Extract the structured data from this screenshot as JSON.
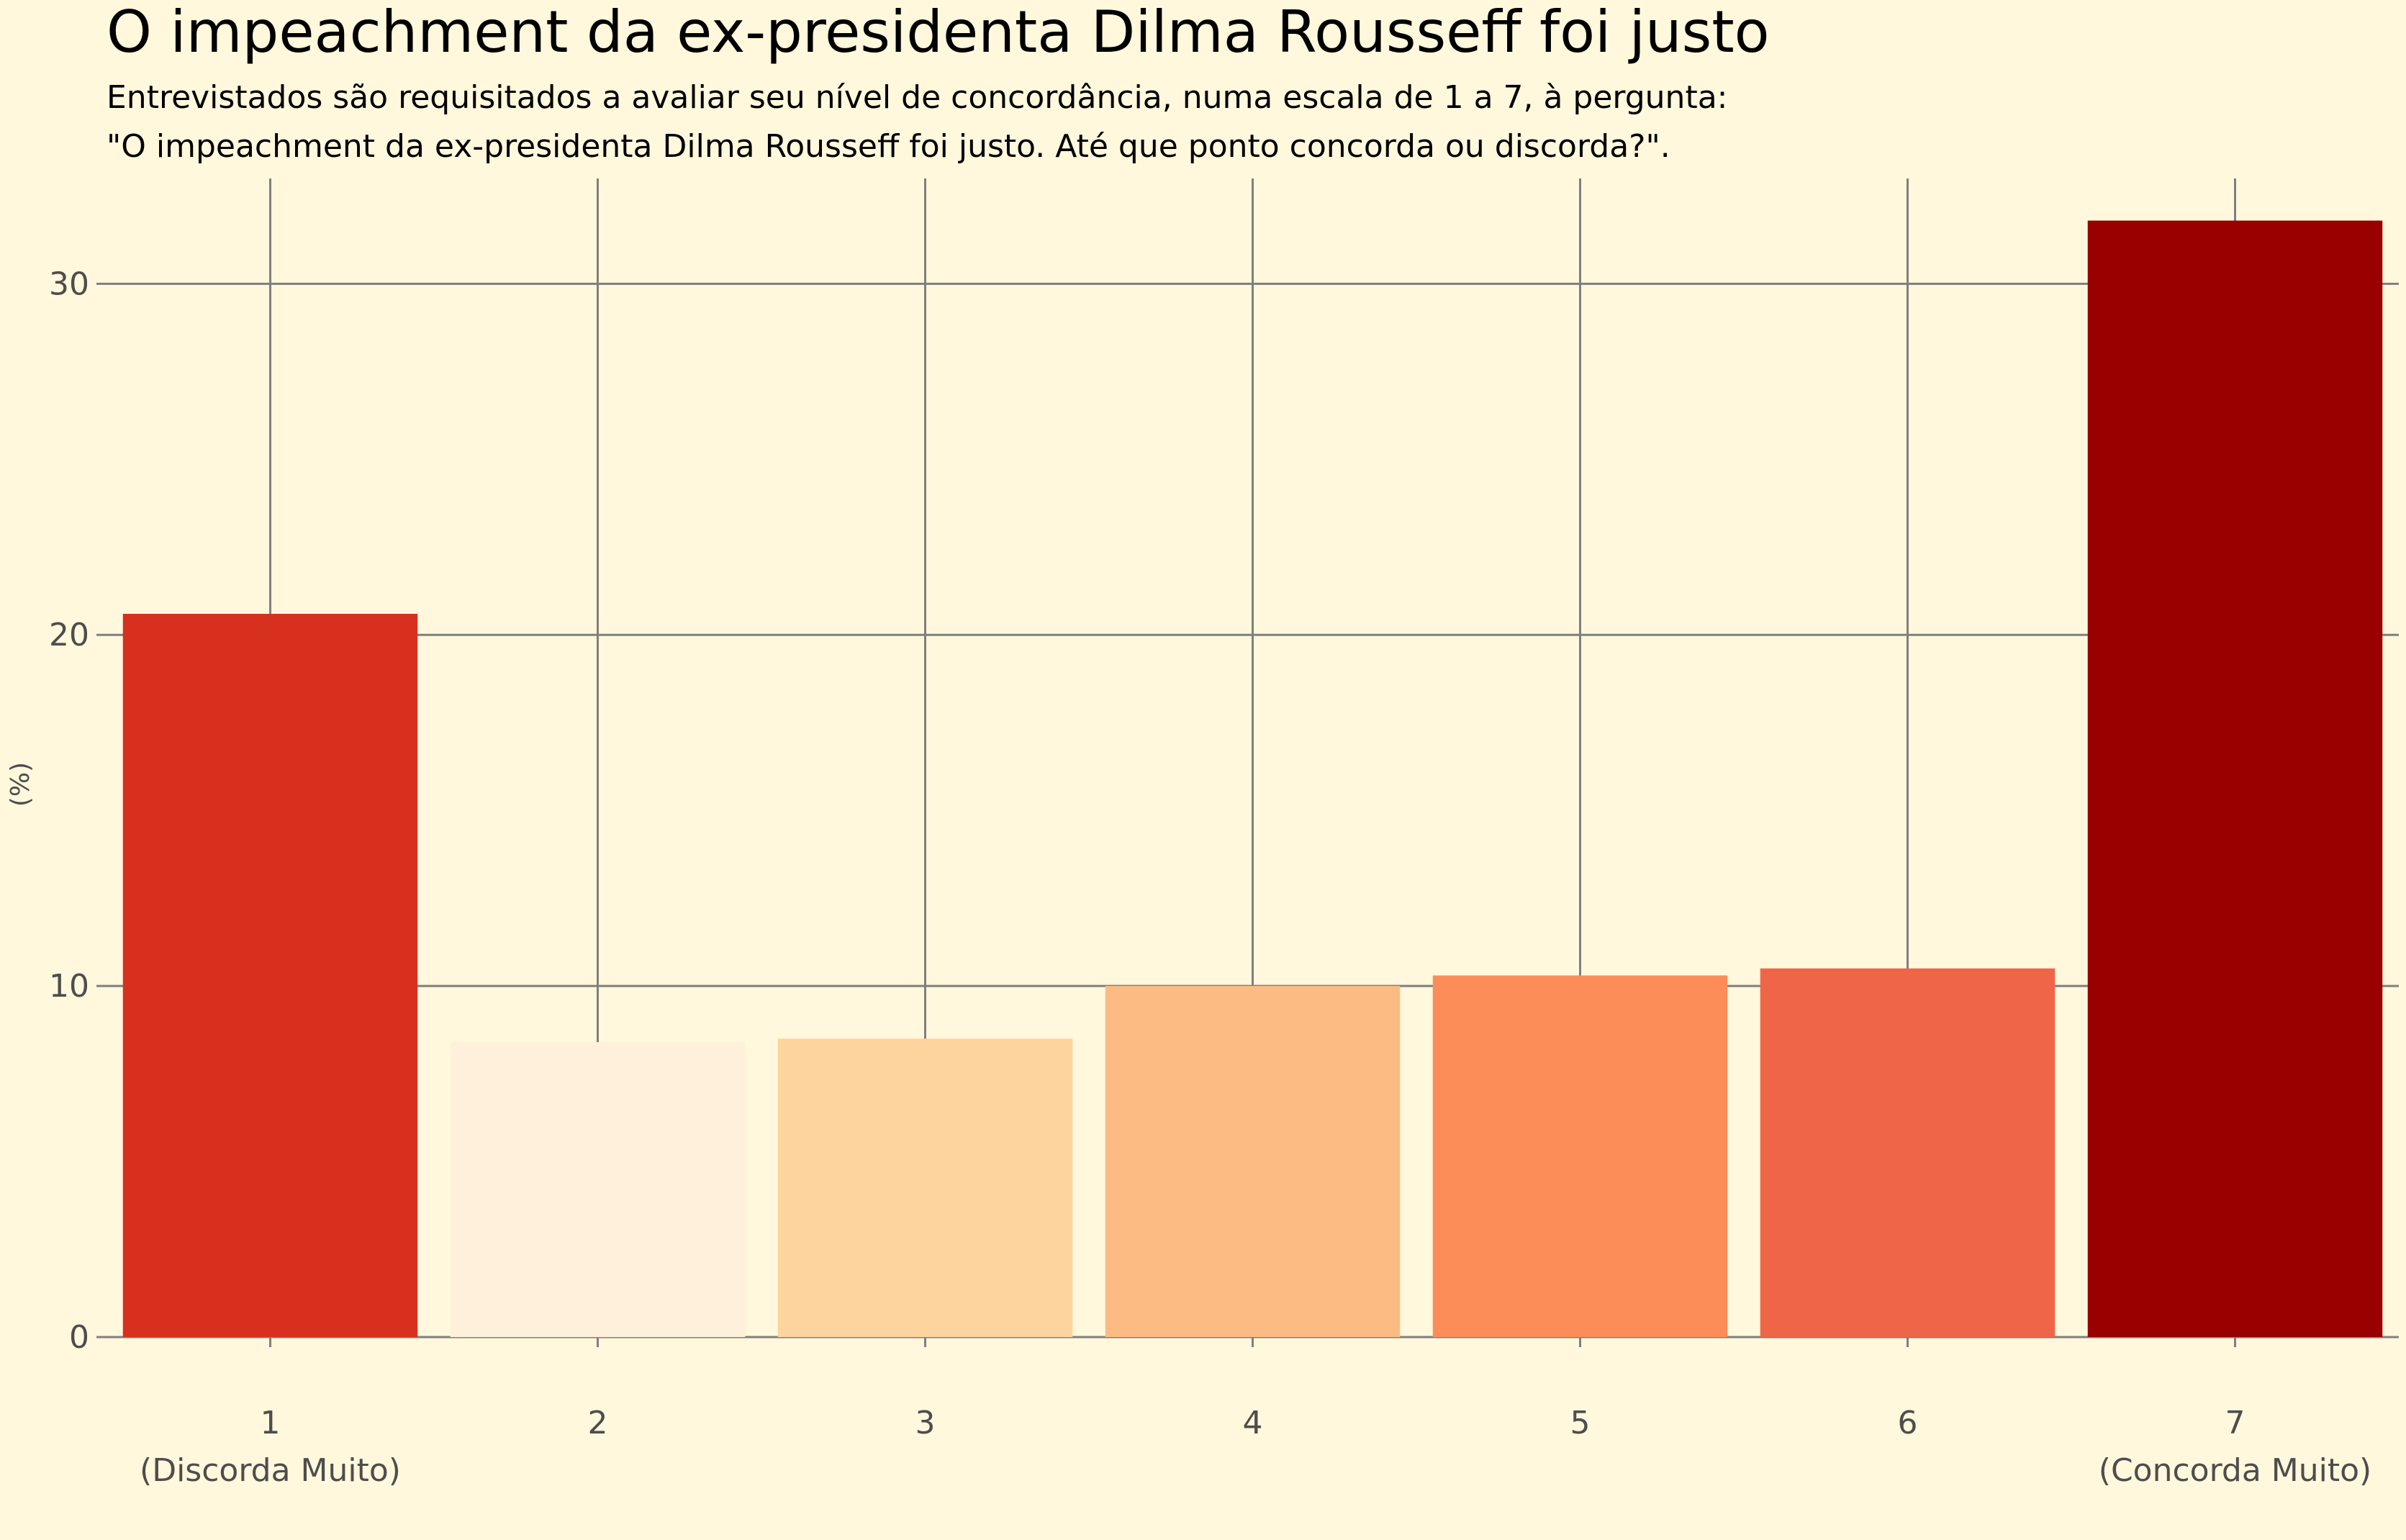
{
  "chart_data": {
    "type": "bar",
    "title": "O impeachment da ex-presidenta Dilma Rousseff foi justo",
    "subtitle": [
      "Entrevistados são requisitados a avaliar seu nível de concordância, numa escala de 1 a 7, à pergunta:",
      "\"O impeachment da ex-presidenta Dilma Rousseff foi justo. Até que ponto concorda ou discorda?\"."
    ],
    "xlabel": "",
    "ylabel": "(%)",
    "ylim": [
      0,
      33
    ],
    "yticks": [
      0,
      10,
      20,
      30
    ],
    "grid": true,
    "legend": "none",
    "categories": [
      "1",
      "2",
      "3",
      "4",
      "5",
      "6",
      "7"
    ],
    "category_sublabels": [
      "(Discorda Muito)",
      "",
      "",
      "",
      "",
      "",
      "(Concorda Muito)"
    ],
    "values": [
      20.6,
      8.4,
      8.5,
      10.0,
      10.3,
      10.5,
      31.8
    ],
    "colors": [
      "#d7301f",
      "#fff0db",
      "#fdd49e",
      "#fdbb84",
      "#fc8d59",
      "#ef6548",
      "#990000"
    ]
  }
}
